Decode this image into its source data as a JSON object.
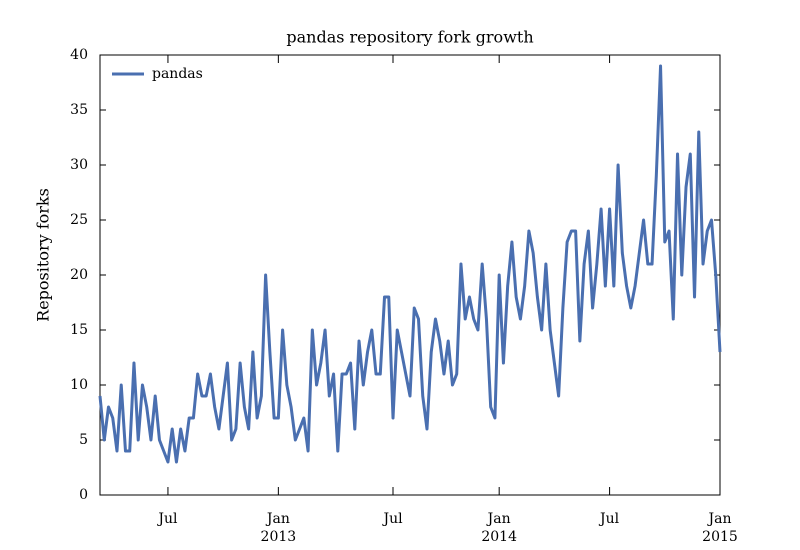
{
  "chart_data": {
    "type": "line",
    "title": "pandas repository fork growth",
    "y_label": "Repository forks",
    "categories": [
      null,
      null,
      null,
      null,
      null,
      null,
      null,
      null,
      null,
      null,
      null,
      null,
      null,
      null,
      null,
      null,
      "Jul",
      null,
      null,
      null,
      null,
      null,
      null,
      null,
      null,
      null,
      null,
      null,
      null,
      null,
      null,
      null,
      null,
      null,
      null,
      null,
      null,
      null,
      null,
      null,
      null,
      null,
      "Jan 2013",
      null,
      null,
      null,
      null,
      null,
      null,
      null,
      null,
      null,
      null,
      null,
      null,
      null,
      null,
      null,
      null,
      null,
      null,
      null,
      null,
      null,
      null,
      null,
      null,
      null,
      null,
      "Jul",
      null,
      null,
      null,
      null,
      null,
      null,
      null,
      null,
      null,
      null,
      null,
      null,
      null,
      null,
      null,
      null,
      null,
      null,
      null,
      null,
      null,
      null,
      null,
      null,
      "Jan 2014",
      null,
      null,
      null,
      null,
      null,
      null,
      null,
      null,
      null,
      null,
      null,
      null,
      null,
      null,
      null,
      null,
      null,
      null,
      null,
      null,
      null,
      null,
      null,
      null,
      null,
      "Jul",
      null,
      null,
      null,
      null,
      null,
      null,
      null,
      null,
      null,
      null,
      null,
      null,
      null,
      null,
      null,
      null,
      null,
      null,
      null,
      null,
      null,
      null,
      null,
      null,
      null,
      "Jan 2015"
    ],
    "series": [
      {
        "name": "pandas",
        "color": "#4a6fb0",
        "values": [
          9,
          5,
          8,
          7,
          4,
          10,
          4,
          4,
          12,
          5,
          10,
          8,
          5,
          9,
          5,
          4,
          3,
          6,
          3,
          6,
          4,
          7,
          7,
          11,
          9,
          9,
          11,
          8,
          6,
          9,
          12,
          5,
          6,
          12,
          8,
          6,
          13,
          7,
          9,
          20,
          13,
          7,
          7,
          15,
          10,
          8,
          5,
          6,
          7,
          4,
          15,
          10,
          12,
          15,
          9,
          11,
          4,
          11,
          11,
          12,
          6,
          14,
          10,
          13,
          15,
          11,
          11,
          18,
          18,
          7,
          15,
          13,
          11,
          9,
          17,
          16,
          9,
          6,
          13,
          16,
          14,
          11,
          14,
          10,
          11,
          21,
          16,
          18,
          16,
          15,
          21,
          16,
          8,
          7,
          20,
          12,
          19,
          23,
          18,
          16,
          19,
          24,
          22,
          18,
          15,
          21,
          15,
          12,
          9,
          17,
          23,
          24,
          24,
          14,
          21,
          24,
          17,
          21,
          26,
          19,
          26,
          19,
          30,
          22,
          19,
          17,
          19,
          22,
          25,
          21,
          21,
          29,
          39,
          23,
          24,
          16,
          31,
          20,
          28,
          31,
          18,
          33,
          21,
          24,
          25,
          20,
          13
        ]
      }
    ],
    "ylim": [
      0,
      40
    ],
    "yticks": [
      0,
      5,
      10,
      15,
      20,
      25,
      30,
      35,
      40
    ],
    "grid": false,
    "legend": "upper left"
  }
}
